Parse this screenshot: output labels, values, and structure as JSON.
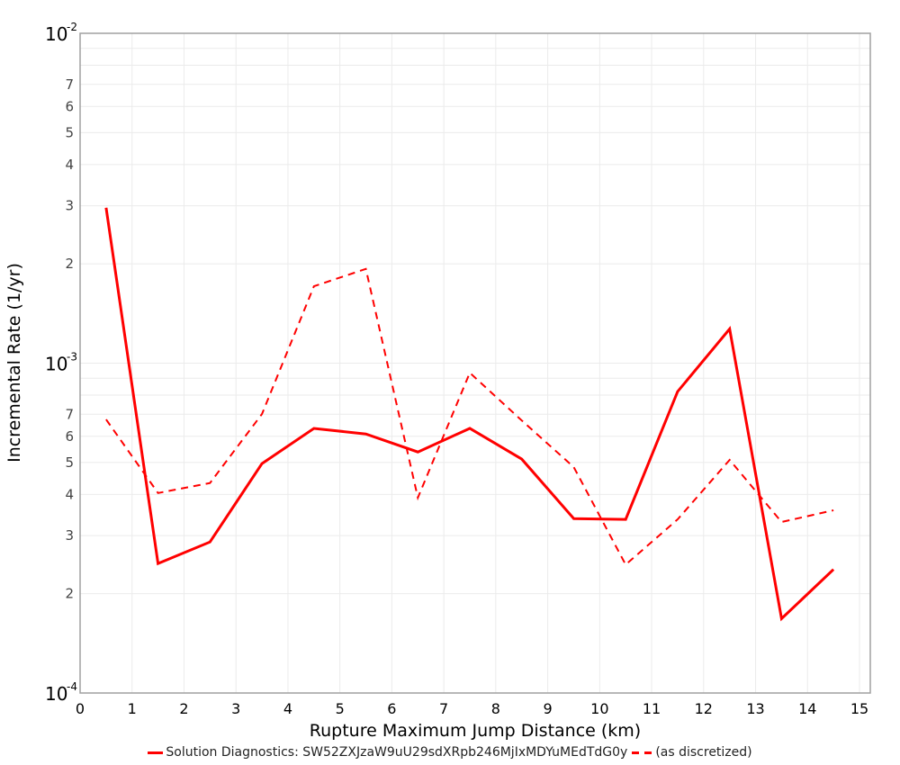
{
  "chart_data": {
    "type": "line",
    "title": "",
    "xlabel": "Rupture Maximum Jump Distance (km)",
    "ylabel": "Incremental Rate (1/yr)",
    "xlim": [
      0,
      15.2
    ],
    "ylim": [
      0.0001,
      0.01
    ],
    "yscale": "log",
    "grid": true,
    "legend_position": "bottom",
    "x_ticks": [
      0,
      1,
      2,
      3,
      4,
      5,
      6,
      7,
      8,
      9,
      10,
      11,
      12,
      13,
      14,
      15
    ],
    "y_decade_ticks": [
      {
        "base": "10",
        "exp": "-2",
        "value": 0.01
      },
      {
        "base": "10",
        "exp": "-3",
        "value": 0.001
      },
      {
        "base": "10",
        "exp": "-4",
        "value": 0.0001
      }
    ],
    "y_minor_labels": [
      "2",
      "3",
      "4",
      "5",
      "6",
      "7"
    ],
    "x": [
      0.5,
      1.5,
      2.5,
      3.5,
      4.5,
      5.5,
      6.5,
      7.5,
      8.5,
      9.5,
      10.5,
      11.5,
      12.5,
      13.5,
      14.5
    ],
    "series": [
      {
        "name": "Solution Diagnostics: SW52ZXJzaW9uU29sdXRpb246MjIxMDYuMEdTdG0y",
        "style": "solid",
        "color": "#ff0000",
        "values": [
          0.00296,
          0.000247,
          0.000287,
          0.000496,
          0.000634,
          0.00061,
          0.000538,
          0.000634,
          0.000512,
          0.000338,
          0.000336,
          0.00082,
          0.00127,
          0.000168,
          0.000237
        ]
      },
      {
        "name": "(as discretized)",
        "style": "dashed",
        "color": "#ff0000",
        "values": [
          0.000675,
          0.000404,
          0.000433,
          0.000701,
          0.00171,
          0.00193,
          0.000391,
          0.000935,
          0.00067,
          0.000484,
          0.000245,
          0.000336,
          0.000509,
          0.00033,
          0.000358
        ]
      }
    ]
  },
  "legend": {
    "solid_label": "Solution Diagnostics: SW52ZXJzaW9uU29sdXRpb246MjIxMDYuMEdTdG0y",
    "dashed_label": "(as discretized)"
  },
  "axes": {
    "xlabel": "Rupture Maximum Jump Distance (km)",
    "ylabel": "Incremental Rate (1/yr)"
  },
  "colors": {
    "series": "#ff0000",
    "grid": "#ebebeb",
    "frame": "#a0a0a0"
  }
}
